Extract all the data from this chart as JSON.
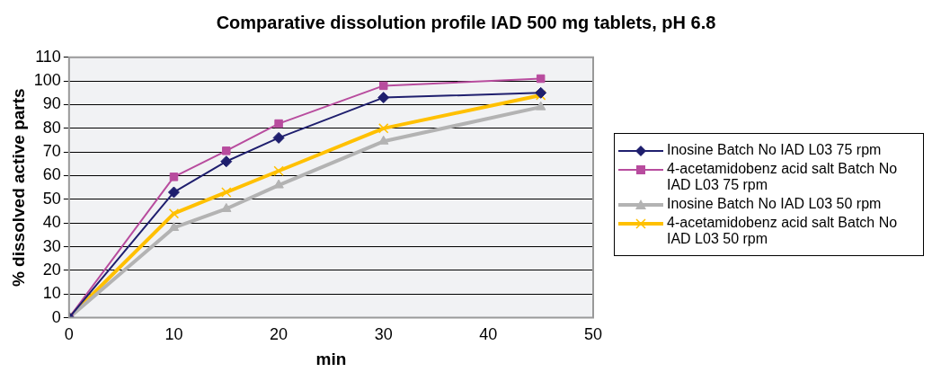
{
  "chart_data": {
    "type": "line",
    "title": "Comparative dissolution profile IAD 500 mg tablets, pH 6.8",
    "xlabel": "min",
    "ylabel": "% dissolved active parts",
    "x": [
      0,
      10,
      15,
      20,
      30,
      45
    ],
    "series": [
      {
        "name": "Inosine Batch No IAD L03 75 rpm",
        "color": "#1f1f6e",
        "marker": "diamond",
        "values": [
          0,
          53,
          66,
          76,
          93,
          95
        ]
      },
      {
        "name": "4-acetamidobenz acid salt Batch No IAD L03 75 rpm",
        "color": "#b84c9e",
        "marker": "square",
        "values": [
          0,
          59.5,
          70.5,
          82,
          98,
          101
        ]
      },
      {
        "name": "Inosine Batch No IAD L03 50 rpm",
        "color": "#b3b3b3",
        "marker": "triangle",
        "values": [
          0,
          38,
          46,
          56,
          74.5,
          89
        ]
      },
      {
        "name": "4-acetamidobenz acid salt Batch No IAD L03 50 rpm",
        "color": "#ffc000",
        "marker": "cross",
        "values": [
          0,
          44,
          53,
          62,
          80,
          94
        ]
      }
    ],
    "xlim": [
      0,
      50
    ],
    "xticks": [
      0,
      10,
      20,
      30,
      40,
      50
    ],
    "ylim": [
      0,
      110
    ],
    "yticks": [
      0,
      10,
      20,
      30,
      40,
      50,
      60,
      70,
      80,
      90,
      100,
      110
    ],
    "grid": "y",
    "legend": "right",
    "line_style": "solid"
  }
}
